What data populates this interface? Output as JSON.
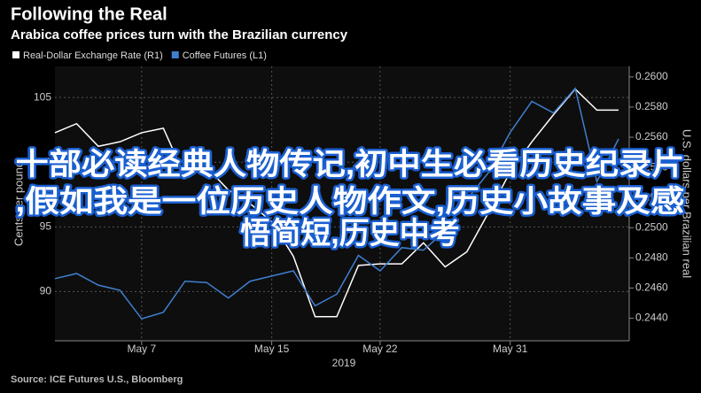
{
  "chart_data": {
    "type": "line",
    "title": "Following the Real",
    "subtitle": "Arabica coffee prices turn with the Brazilian currency",
    "source": "Source: ICE Futures U.S., Bloomberg",
    "x_label": "2019",
    "y_label": "Cents per pound",
    "y2_label": "U.S. dollars per Brazilian real",
    "categories": [
      null,
      null,
      null,
      null,
      "May 7",
      null,
      null,
      null,
      null,
      null,
      "May 15",
      null,
      null,
      null,
      null,
      "May 22",
      null,
      null,
      null,
      null,
      null,
      "May 31",
      null,
      null,
      null,
      null,
      null
    ],
    "series": [
      {
        "name": "Real-Dollar Exchange Rate (R1)",
        "color": "#ffffff",
        "axis": "y2",
        "values": [
          0.2563,
          0.2569,
          0.2554,
          0.2557,
          0.2563,
          0.2566,
          0.2534,
          0.254,
          0.2525,
          0.2516,
          0.2504,
          0.2481,
          0.2441,
          0.2441,
          0.2475,
          0.2476,
          0.2476,
          0.249,
          0.2474,
          0.2484,
          0.251,
          0.2537,
          0.2557,
          0.2575,
          0.2592,
          0.2578,
          0.2578
        ]
      },
      {
        "name": "Coffee Futures (L1)",
        "color": "#3f7fd0",
        "values": [
          91.0,
          91.4,
          90.5,
          90.1,
          87.9,
          88.4,
          90.8,
          90.7,
          89.5,
          90.8,
          91.2,
          91.6,
          88.9,
          89.8,
          92.8,
          91.6,
          93.4,
          93.2,
          94.7,
          97.1,
          99.2,
          102.3,
          104.7,
          103.8,
          105.7,
          98.5,
          101.8
        ]
      }
    ],
    "ylim": [
      86.2,
      107.4
    ],
    "yticks": [
      90,
      95,
      100,
      105
    ],
    "y2lim": [
      0.2425,
      0.2607
    ],
    "y2ticks": [
      {
        "value": 0.244,
        "label": "0.2440"
      },
      {
        "value": 0.246,
        "label": "0.2460"
      },
      {
        "value": 0.248,
        "label": "0.2480"
      },
      {
        "value": 0.25,
        "label": "0.2500"
      },
      {
        "value": 0.252,
        "label": "0.2520"
      },
      {
        "value": 0.254,
        "label": "0.2540"
      },
      {
        "value": 0.256,
        "label": "0.2560"
      },
      {
        "value": 0.258,
        "label": "0.2580"
      },
      {
        "value": 0.26,
        "label": "0.2600"
      }
    ],
    "grid": true
  },
  "overlay": {
    "lines": [
      "十部必读经典人物传记,初中生必看历史纪录片",
      ",假如我是一位历史人物作文,历史小故事及感",
      "悟简短,历史中考"
    ]
  }
}
